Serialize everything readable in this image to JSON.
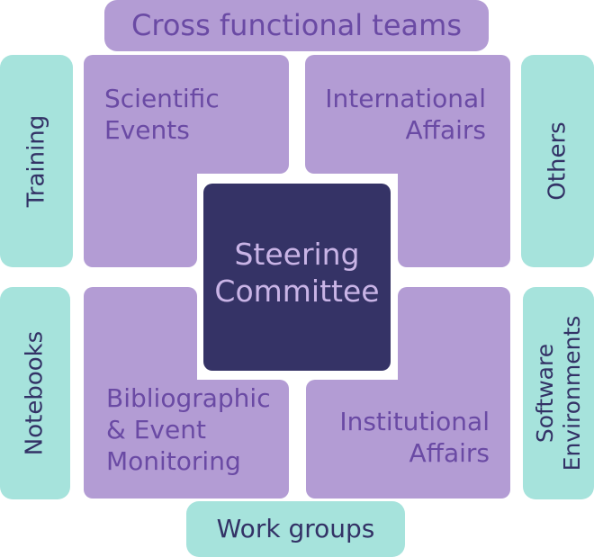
{
  "top_banner": {
    "label": "Cross functional teams"
  },
  "bottom_banner": {
    "label": "Work groups"
  },
  "left_top": {
    "label": "Training"
  },
  "left_bottom": {
    "label": "Notebooks"
  },
  "right_top": {
    "label": "Others"
  },
  "right_bottom": {
    "label": "Software\nEnvironments"
  },
  "quadrants": {
    "top_left": {
      "label": "Scientific\nEvents"
    },
    "top_right": {
      "label": "International\nAffairs"
    },
    "bottom_left": {
      "label": "Bibliographic\n& Event\nMonitoring"
    },
    "bottom_right": {
      "label": "Institutional\nAffairs"
    }
  },
  "center": {
    "label": "Steering\nCommittee"
  },
  "colors": {
    "teal": "#a6e3dc",
    "purple": "#b39cd4",
    "navy": "#353366",
    "teal_text": "#333266",
    "purple_text": "#6a4aa4",
    "center_text": "#c9b4e6"
  }
}
